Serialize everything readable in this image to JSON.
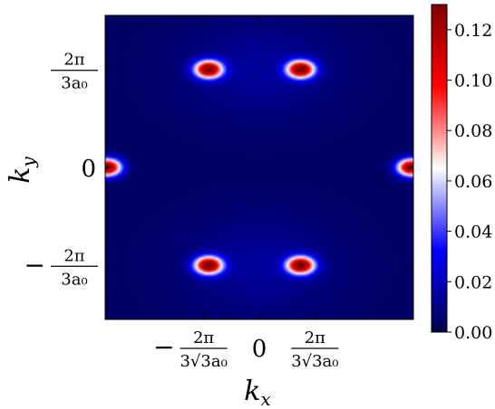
{
  "chart_data": {
    "type": "heatmap",
    "title": "",
    "xlabel": "k_x",
    "ylabel": "k_y",
    "x_ticks": [
      {
        "value": -1.2092,
        "num": "2π",
        "den": "3√3a₀",
        "sign": "−"
      },
      {
        "value": 0,
        "text": "0"
      },
      {
        "value": 1.2092,
        "num": "2π",
        "den": "3√3a₀",
        "sign": ""
      }
    ],
    "y_ticks": [
      {
        "value": 2.0944,
        "num": "2π",
        "den": "3a₀",
        "sign": ""
      },
      {
        "value": 0,
        "text": "0"
      },
      {
        "value": -2.0944,
        "num": "2π",
        "den": "3a₀",
        "sign": "−"
      }
    ],
    "xlim": [
      -3.35,
      3.35
    ],
    "ylim": [
      -3.25,
      3.25
    ],
    "colorbar": {
      "colormap": "seismic",
      "range": [
        0.0,
        0.13
      ],
      "ticks": [
        "0.00",
        "0.02",
        "0.04",
        "0.06",
        "0.08",
        "0.10",
        "0.12"
      ],
      "tick_values": [
        0.0,
        0.02,
        0.04,
        0.06,
        0.08,
        0.1,
        0.12
      ],
      "colors": [
        "#00004c",
        "#0000ff",
        "#ffffff",
        "#ff0000",
        "#800000"
      ]
    },
    "hotspots": [
      {
        "kx": -1.1,
        "ky": 2.0944,
        "peak": 0.13
      },
      {
        "kx": 0.9,
        "ky": 2.0944,
        "peak": 0.13
      },
      {
        "kx": -1.1,
        "ky": -2.0944,
        "peak": 0.13
      },
      {
        "kx": 0.9,
        "ky": -2.0944,
        "peak": 0.13
      },
      {
        "kx": -3.3,
        "ky": 0,
        "peak": 0.13
      },
      {
        "kx": 3.3,
        "ky": 0,
        "peak": 0.13
      }
    ]
  }
}
